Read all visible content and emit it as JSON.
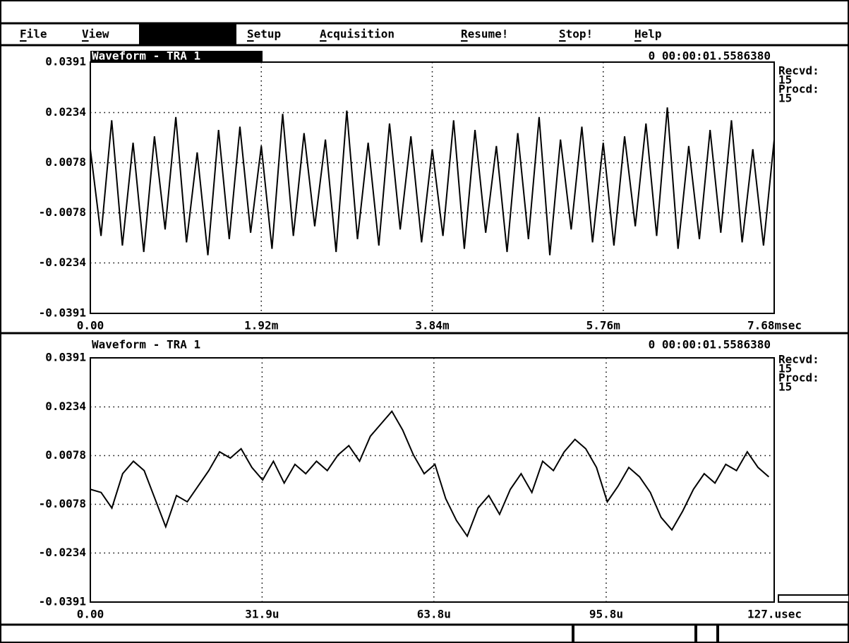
{
  "menu": {
    "items": [
      "File",
      "View",
      "Setup",
      "Acquisition",
      "Resume!",
      "Stop!",
      "Help"
    ]
  },
  "chart_data": [
    {
      "type": "line",
      "title": "Waveform - TRA 1",
      "timestamp": "0 00:00:01.5586380",
      "received_label": "Recvd:",
      "received": 15,
      "processed_label": "Procd:",
      "processed": 15,
      "color": "#000000",
      "grid": true,
      "x": [
        0,
        0.12,
        0.24,
        0.36,
        0.48,
        0.6,
        0.72,
        0.84,
        0.96,
        1.08,
        1.2,
        1.32,
        1.44,
        1.56,
        1.68,
        1.8,
        1.92,
        2.04,
        2.16,
        2.28,
        2.4,
        2.52,
        2.64,
        2.76,
        2.88,
        3,
        3.12,
        3.24,
        3.36,
        3.48,
        3.6,
        3.72,
        3.84,
        3.96,
        4.08,
        4.2,
        4.32,
        4.44,
        4.56,
        4.68,
        4.8,
        4.92,
        5.04,
        5.16,
        5.28,
        5.4,
        5.52,
        5.64,
        5.76,
        5.88,
        6,
        6.12,
        6.24,
        6.36,
        6.48,
        6.6,
        6.72,
        6.84,
        6.96,
        7.08,
        7.2,
        7.32,
        7.44,
        7.56,
        7.68
      ],
      "values": [
        0.012,
        -0.015,
        0.021,
        -0.018,
        0.014,
        -0.02,
        0.016,
        -0.013,
        0.022,
        -0.017,
        0.011,
        -0.021,
        0.018,
        -0.016,
        0.019,
        -0.014,
        0.013,
        -0.019,
        0.023,
        -0.015,
        0.017,
        -0.012,
        0.015,
        -0.02,
        0.024,
        -0.016,
        0.014,
        -0.018,
        0.02,
        -0.013,
        0.016,
        -0.017,
        0.012,
        -0.015,
        0.021,
        -0.019,
        0.018,
        -0.014,
        0.013,
        -0.02,
        0.017,
        -0.016,
        0.022,
        -0.021,
        0.015,
        -0.013,
        0.019,
        -0.017,
        0.014,
        -0.018,
        0.016,
        -0.012,
        0.02,
        -0.015,
        0.025,
        -0.019,
        0.013,
        -0.016,
        0.018,
        -0.014,
        0.021,
        -0.017,
        0.012,
        -0.018,
        0.015
      ],
      "xlim": [
        0,
        7.68
      ],
      "xticks": [
        {
          "value": 0,
          "label": "0.00"
        },
        {
          "value": 1.92,
          "label": "1.92m"
        },
        {
          "value": 3.84,
          "label": "3.84m"
        },
        {
          "value": 5.76,
          "label": "5.76m"
        },
        {
          "value": 7.68,
          "label": "7.68msec"
        }
      ],
      "ylim": [
        -0.0391,
        0.0391
      ],
      "yticks": [
        0.0391,
        0.0234,
        0.0078,
        -0.0078,
        -0.0234,
        -0.0391
      ]
    },
    {
      "type": "line",
      "title": "Waveform - TRA 1",
      "timestamp": "0 00:00:01.5586380",
      "received_label": "Recvd:",
      "received": 15,
      "processed_label": "Procd:",
      "processed": 15,
      "color": "#000000",
      "grid": true,
      "x": [
        0,
        2,
        4,
        6,
        8,
        10,
        12,
        14,
        16,
        18,
        20,
        22,
        24,
        26,
        28,
        30,
        32,
        34,
        36,
        38,
        40,
        42,
        44,
        46,
        48,
        50,
        52,
        54,
        56,
        58,
        60,
        62,
        64,
        66,
        68,
        70,
        72,
        74,
        76,
        78,
        80,
        82,
        84,
        86,
        88,
        90,
        92,
        94,
        96,
        98,
        100,
        102,
        104,
        106,
        108,
        110,
        112,
        114,
        116,
        118,
        120,
        122,
        124,
        126
      ],
      "values": [
        -0.003,
        -0.004,
        -0.009,
        0.002,
        0.006,
        0.003,
        -0.006,
        -0.015,
        -0.005,
        -0.007,
        -0.002,
        0.003,
        0.009,
        0.007,
        0.01,
        0.004,
        0.0,
        0.006,
        -0.001,
        0.005,
        0.002,
        0.006,
        0.003,
        0.008,
        0.011,
        0.006,
        0.014,
        0.018,
        0.022,
        0.016,
        0.008,
        0.002,
        0.005,
        -0.006,
        -0.013,
        -0.018,
        -0.009,
        -0.005,
        -0.011,
        -0.003,
        0.002,
        -0.004,
        0.006,
        0.003,
        0.009,
        0.013,
        0.01,
        0.004,
        -0.007,
        -0.002,
        0.004,
        0.001,
        -0.004,
        -0.012,
        -0.016,
        -0.01,
        -0.003,
        0.002,
        -0.001,
        0.005,
        0.003,
        0.009,
        0.004,
        0.001
      ],
      "xlim": [
        0,
        127
      ],
      "xticks": [
        {
          "value": 0,
          "label": "0.00"
        },
        {
          "value": 31.9,
          "label": "31.9u"
        },
        {
          "value": 63.8,
          "label": "63.8u"
        },
        {
          "value": 95.8,
          "label": "95.8u"
        },
        {
          "value": 127,
          "label": "127.usec"
        }
      ],
      "ylim": [
        -0.0391,
        0.0391
      ],
      "yticks": [
        0.0391,
        0.0234,
        0.0078,
        -0.0078,
        -0.0234,
        -0.0391
      ]
    }
  ]
}
